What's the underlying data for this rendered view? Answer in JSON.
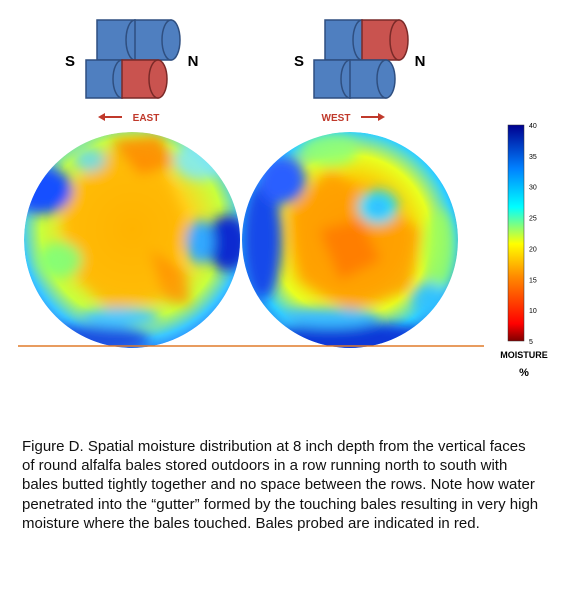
{
  "diagram": {
    "left_group": {
      "south_label": "S",
      "north_label": "N",
      "direction_label": "EAST",
      "direction_arrow": "left"
    },
    "right_group": {
      "south_label": "S",
      "north_label": "N",
      "direction_label": "WEST",
      "direction_arrow": "right"
    },
    "colors": {
      "bale_blue": "#4f7fc0",
      "bale_red": "#c9534f",
      "arrow_red": "#c0392b",
      "ground_line": "#e07b2a"
    },
    "colorbar": {
      "ticks": [
        "40",
        "35",
        "30",
        "25",
        "20",
        "15",
        "10",
        "5"
      ],
      "min": 5,
      "max": 40,
      "label_line1": "MOISTURE",
      "label_line2": "%",
      "colormap": [
        "#7f0000",
        "#ff0000",
        "#ff8c00",
        "#ffff00",
        "#00ffff",
        "#0080ff",
        "#00008f"
      ]
    }
  },
  "caption": "Figure D. Spatial moisture distribution at 8 inch depth from the vertical faces of round alfalfa bales stored outdoors in a row running north to south with bales butted tightly together and no space between the rows. Note how water penetrated into the “gutter” formed by the touching bales resulting in very high moisture where the bales touched. Bales probed are indicated in red."
}
